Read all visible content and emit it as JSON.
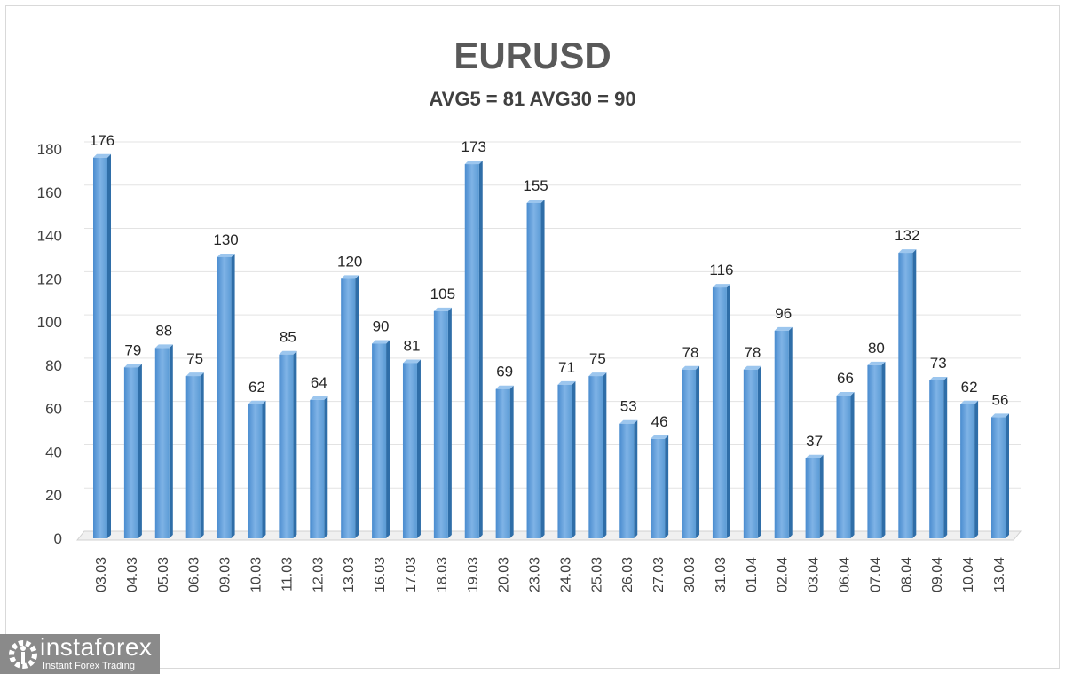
{
  "chart_data": {
    "type": "bar",
    "title": "EURUSD",
    "subtitle": "AVG5 = 81 AVG30 = 90",
    "categories": [
      "03.03",
      "04.03",
      "05.03",
      "06.03",
      "09.03",
      "10.03",
      "11.03",
      "12.03",
      "13.03",
      "16.03",
      "17.03",
      "18.03",
      "19.03",
      "20.03",
      "23.03",
      "24.03",
      "25.03",
      "26.03",
      "27.03",
      "30.03",
      "31.03",
      "01.04",
      "02.04",
      "03.04",
      "06.04",
      "07.04",
      "08.04",
      "09.04",
      "10.04",
      "13.04"
    ],
    "values": [
      176,
      79,
      88,
      75,
      130,
      62,
      85,
      64,
      120,
      90,
      81,
      105,
      173,
      69,
      155,
      71,
      75,
      53,
      46,
      78,
      116,
      78,
      96,
      37,
      66,
      80,
      132,
      73,
      62,
      56
    ],
    "ylim": [
      0,
      180
    ],
    "yticks": [
      0,
      20,
      40,
      60,
      80,
      100,
      120,
      140,
      160,
      180
    ],
    "grid": true,
    "bar_color": "#5b9bd5",
    "data_labels": true
  },
  "logo": {
    "name": "instaforex",
    "tagline": "Instant Forex Trading"
  }
}
